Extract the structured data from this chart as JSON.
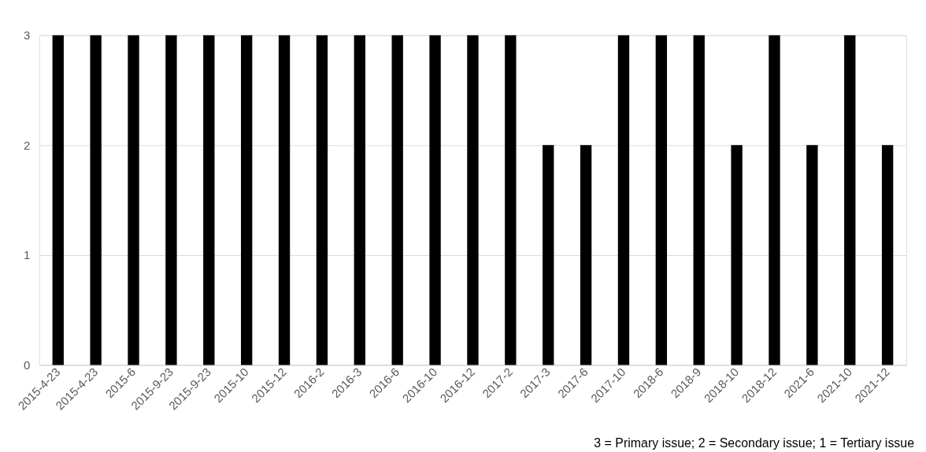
{
  "chart_data": {
    "type": "bar",
    "categories": [
      "2015-4-23",
      "2015-4-23",
      "2015-6",
      "2015-9-23",
      "2015-9-23",
      "2015-10",
      "2015-12",
      "2016-2",
      "2016-3",
      "2016-6",
      "2016-10",
      "2016-12",
      "2017-2",
      "2017-3",
      "2017-6",
      "2017-10",
      "2018-6",
      "2018-9",
      "2018-10",
      "2018-12",
      "2021-6",
      "2021-10",
      "2021-12"
    ],
    "values": [
      3,
      3,
      3,
      3,
      3,
      3,
      3,
      3,
      3,
      3,
      3,
      3,
      3,
      2,
      2,
      3,
      3,
      3,
      2,
      3,
      2,
      3,
      2
    ],
    "color": "#000000",
    "ylim": [
      0,
      3
    ],
    "yticks": [
      0,
      1,
      2,
      3
    ],
    "grid": "y",
    "annotations": [
      "3 = Primary issue; 2 = Secondary issue; 1 = Tertiary issue"
    ]
  }
}
